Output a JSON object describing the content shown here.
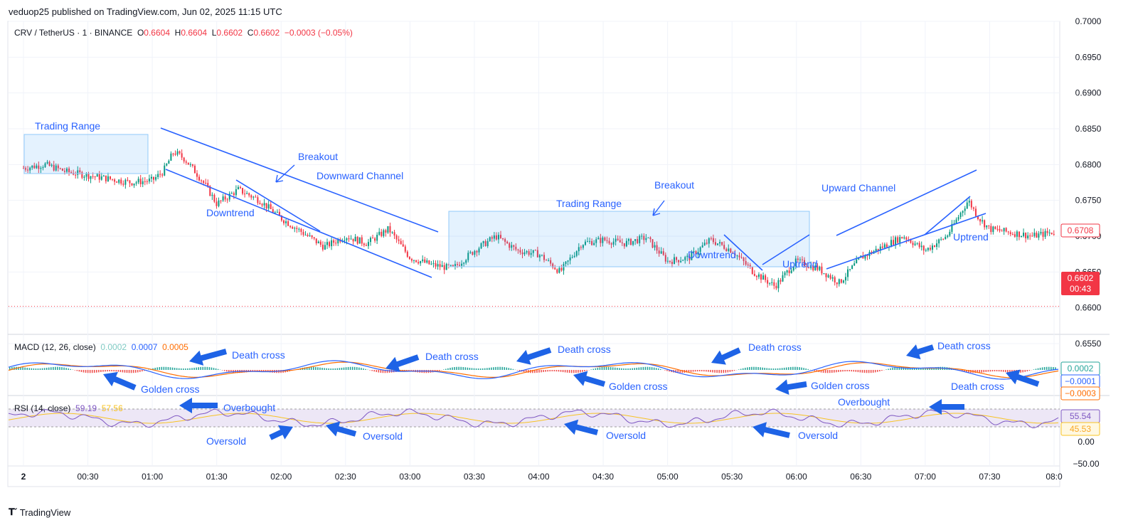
{
  "header": {
    "published": "veduop25 published on TradingView.com, Jun 02, 2025 11:15 UTC"
  },
  "symbol": {
    "pair": "CRV / TetherUS · 1 · BINANCE",
    "open_label": "O",
    "open": "0.6604",
    "high_label": "H",
    "high": "0.6604",
    "low_label": "L",
    "low": "0.6602",
    "close_label": "C",
    "close": "0.6602",
    "change": "−0.0003 (−0.05%)"
  },
  "price_axis": {
    "ticks": [
      "0.7000",
      "0.6950",
      "0.6900",
      "0.6850",
      "0.6800",
      "0.6750",
      "0.6700",
      "0.6650",
      "0.6600",
      "0.6550"
    ]
  },
  "price_tags": {
    "last": "0.6708",
    "current": "0.6602",
    "countdown": "00:43"
  },
  "time_axis": {
    "ticks": [
      "2",
      "00:30",
      "01:00",
      "01:30",
      "02:00",
      "02:30",
      "03:00",
      "03:30",
      "04:00",
      "04:30",
      "05:00",
      "05:30",
      "06:00",
      "06:30",
      "07:00",
      "07:30",
      "08:0"
    ]
  },
  "macd": {
    "label": "MACD (12, 26, close)",
    "v1": "0.0002",
    "v2": "0.0007",
    "v3": "0.0005",
    "tags": [
      "0.0002",
      "−0.0001",
      "−0.0003"
    ],
    "colors": {
      "hist_up": "#26a69a",
      "hist_down": "#ef5350",
      "macd_line": "#2962ff",
      "signal_line": "#ff6d00"
    }
  },
  "rsi": {
    "label": "RSI (14, close)",
    "v1": "59.19",
    "v2": "57.56",
    "tags": [
      "55.54",
      "45.53"
    ],
    "axis": [
      "0.00",
      "−50.00"
    ],
    "colors": {
      "rsi_line": "#7e57c2",
      "ma_line": "#f7c325",
      "band": "#ede7f6"
    }
  },
  "footer": {
    "brand": "TradingView"
  },
  "annotations": {
    "price": [
      "Trading Range",
      "Breakout",
      "Downward Channel",
      "Downtrend",
      "Trading Range",
      "Breakout",
      "Downtrend",
      "Uptrend",
      "Upward Channel",
      "Uptrend"
    ],
    "macd": [
      "Death cross",
      "Golden cross",
      "Death cross",
      "Death cross",
      "Golden cross",
      "Death cross",
      "Golden cross",
      "Death cross",
      "Death cross"
    ],
    "rsi": [
      "Overbought",
      "Oversold",
      "Oversold",
      "Oversold",
      "Oversold",
      "Overbought"
    ]
  },
  "chart_data": {
    "type": "candlestick",
    "ylim": [
      0.655,
      0.7
    ],
    "grid": true,
    "close_series": [
      {
        "x": "00:00",
        "y": 0.6795
      },
      {
        "x": "00:10",
        "y": 0.68
      },
      {
        "x": "00:20",
        "y": 0.679
      },
      {
        "x": "00:30",
        "y": 0.6785
      },
      {
        "x": "00:40",
        "y": 0.678
      },
      {
        "x": "00:50",
        "y": 0.6775
      },
      {
        "x": "01:00",
        "y": 0.6778
      },
      {
        "x": "01:05",
        "y": 0.679
      },
      {
        "x": "01:10",
        "y": 0.6818
      },
      {
        "x": "01:15",
        "y": 0.6808
      },
      {
        "x": "01:20",
        "y": 0.679
      },
      {
        "x": "01:25",
        "y": 0.677
      },
      {
        "x": "01:30",
        "y": 0.6745
      },
      {
        "x": "01:40",
        "y": 0.6765
      },
      {
        "x": "01:50",
        "y": 0.675
      },
      {
        "x": "02:00",
        "y": 0.6725
      },
      {
        "x": "02:10",
        "y": 0.6705
      },
      {
        "x": "02:20",
        "y": 0.6685
      },
      {
        "x": "02:30",
        "y": 0.67
      },
      {
        "x": "02:40",
        "y": 0.669
      },
      {
        "x": "02:50",
        "y": 0.671
      },
      {
        "x": "03:00",
        "y": 0.667
      },
      {
        "x": "03:10",
        "y": 0.666
      },
      {
        "x": "03:20",
        "y": 0.6655
      },
      {
        "x": "03:30",
        "y": 0.668
      },
      {
        "x": "03:40",
        "y": 0.67
      },
      {
        "x": "03:50",
        "y": 0.668
      },
      {
        "x": "04:00",
        "y": 0.6675
      },
      {
        "x": "04:10",
        "y": 0.665
      },
      {
        "x": "04:20",
        "y": 0.669
      },
      {
        "x": "04:30",
        "y": 0.6695
      },
      {
        "x": "04:40",
        "y": 0.669
      },
      {
        "x": "04:50",
        "y": 0.6698
      },
      {
        "x": "05:00",
        "y": 0.6665
      },
      {
        "x": "05:10",
        "y": 0.667
      },
      {
        "x": "05:20",
        "y": 0.6695
      },
      {
        "x": "05:30",
        "y": 0.668
      },
      {
        "x": "05:40",
        "y": 0.665
      },
      {
        "x": "05:50",
        "y": 0.663
      },
      {
        "x": "06:00",
        "y": 0.6665
      },
      {
        "x": "06:10",
        "y": 0.6655
      },
      {
        "x": "06:20",
        "y": 0.6635
      },
      {
        "x": "06:30",
        "y": 0.667
      },
      {
        "x": "06:40",
        "y": 0.6685
      },
      {
        "x": "06:50",
        "y": 0.67
      },
      {
        "x": "07:00",
        "y": 0.668
      },
      {
        "x": "07:10",
        "y": 0.67
      },
      {
        "x": "07:20",
        "y": 0.675
      },
      {
        "x": "07:25",
        "y": 0.6725
      },
      {
        "x": "07:30",
        "y": 0.671
      },
      {
        "x": "07:40",
        "y": 0.6705
      },
      {
        "x": "07:50",
        "y": 0.67
      },
      {
        "x": "08:00",
        "y": 0.6706
      }
    ]
  }
}
